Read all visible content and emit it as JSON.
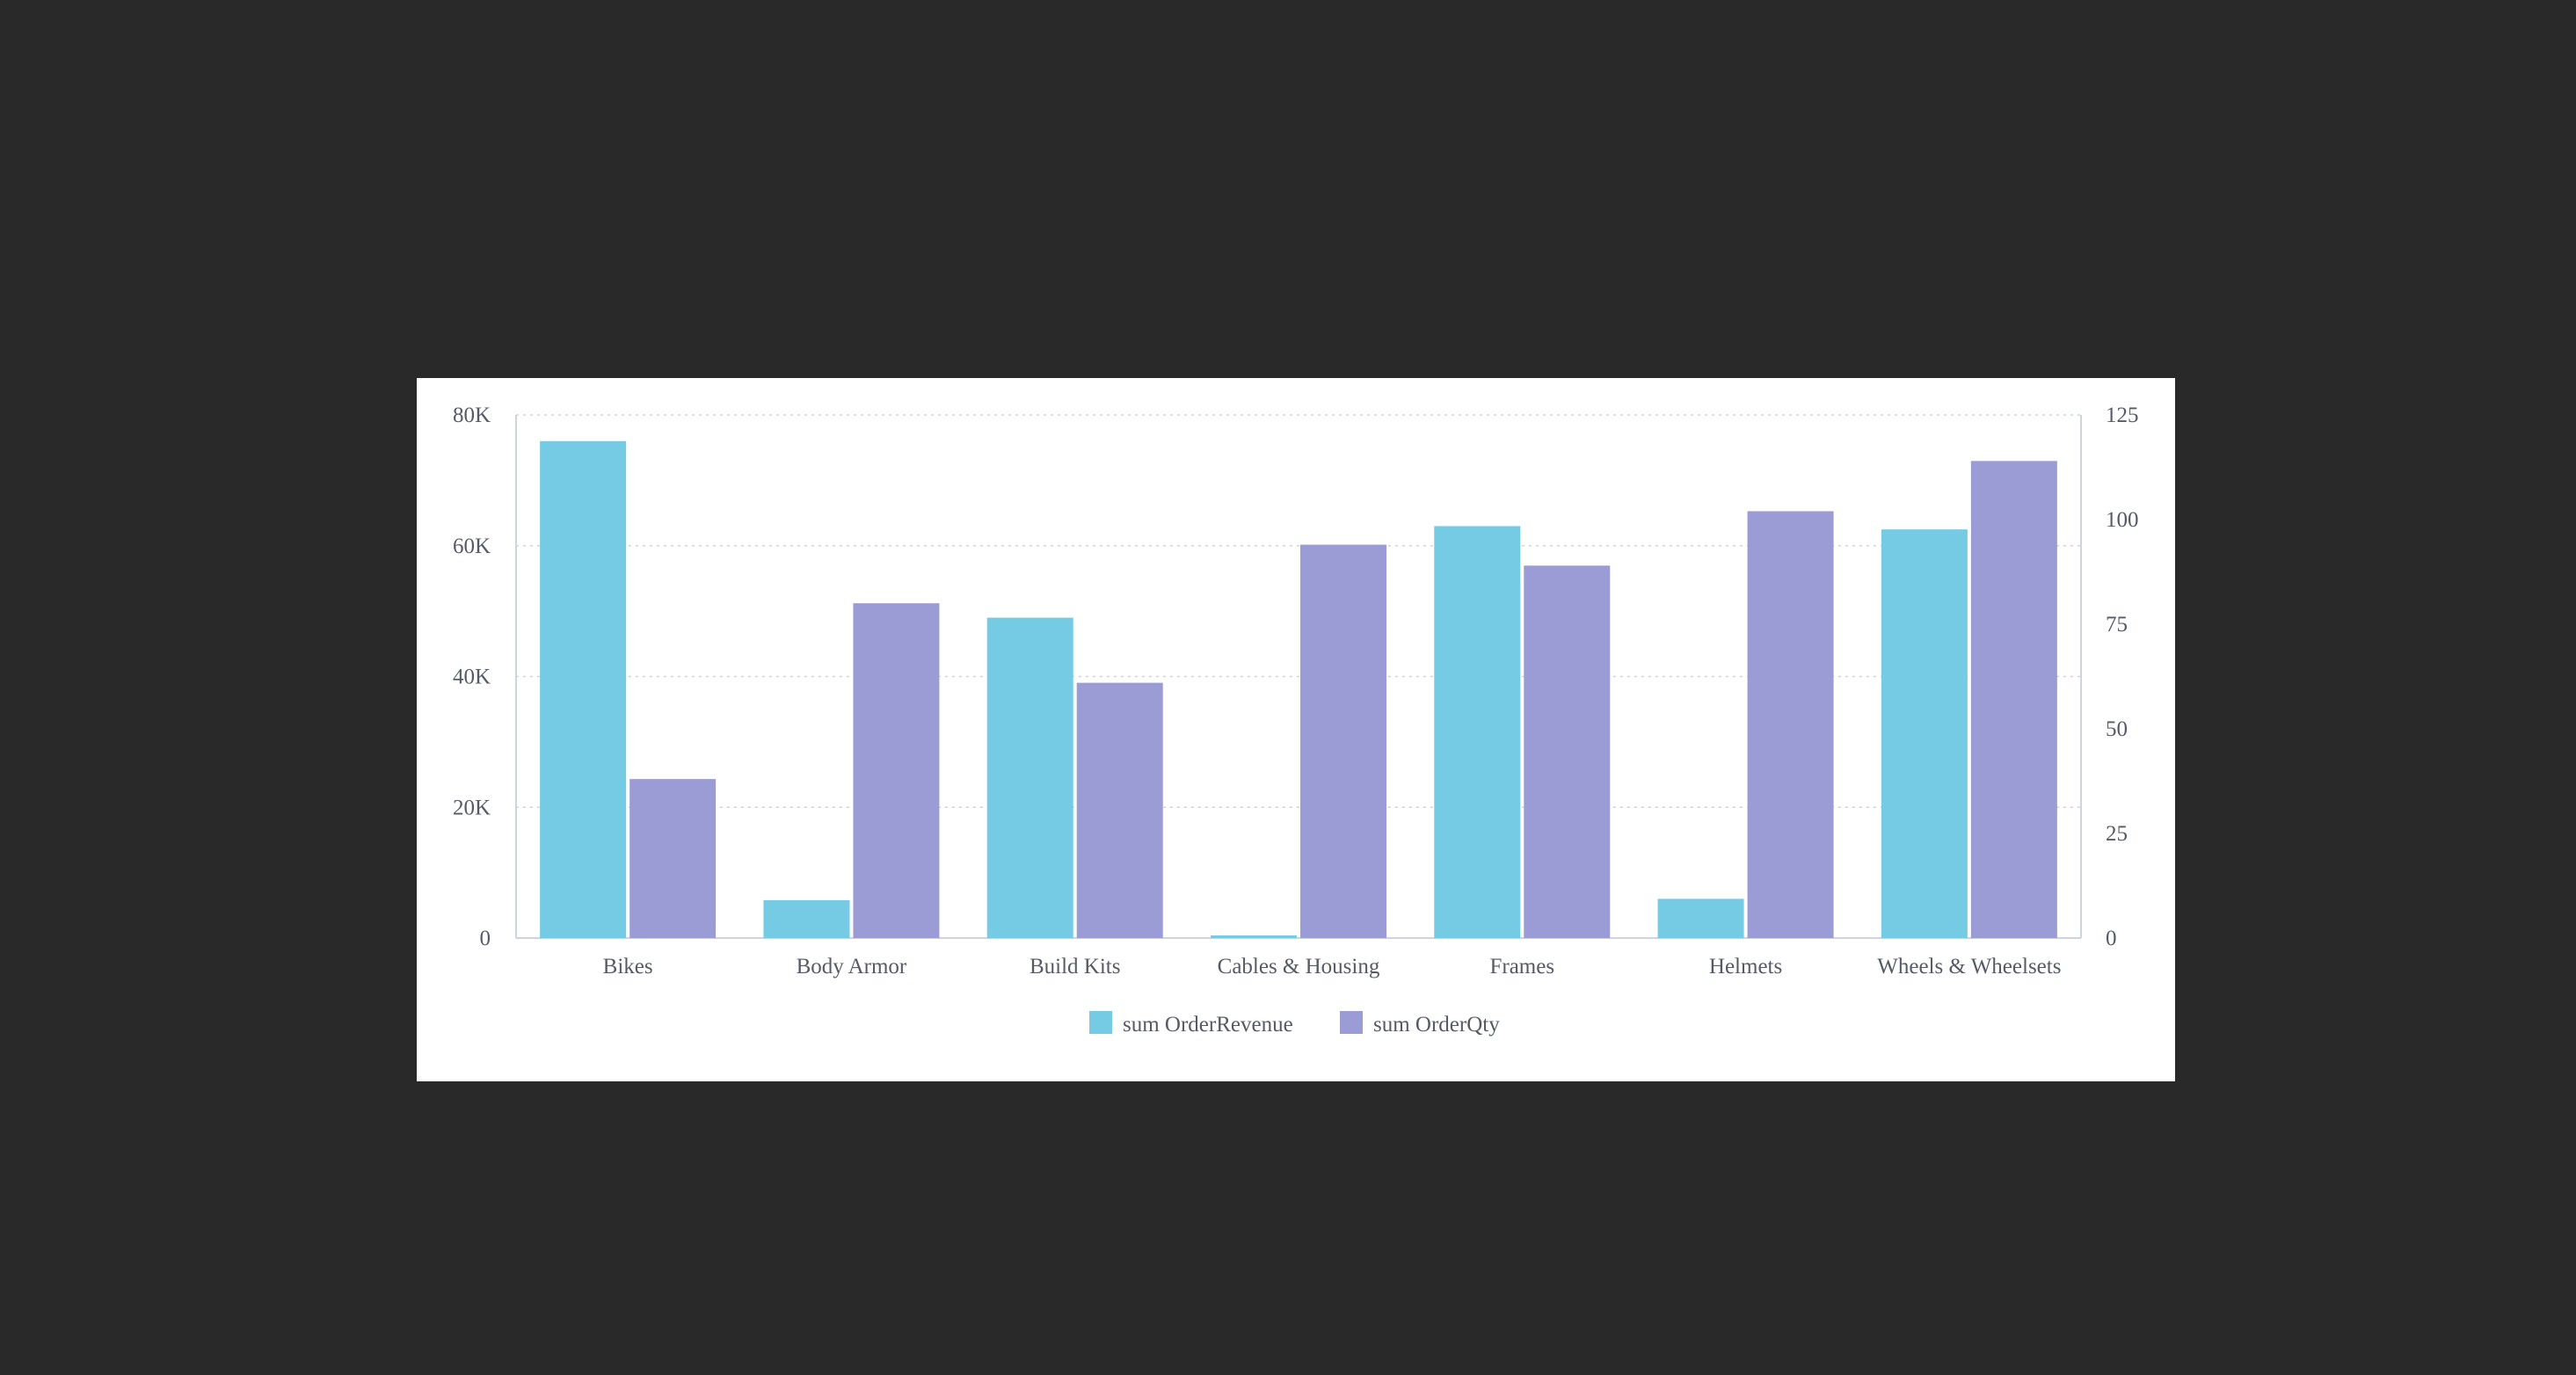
{
  "colors": {
    "background": "#292929",
    "panel": "#ffffff",
    "revenue": "#74cbe3",
    "qty": "#9b9bd6",
    "grid": "#d3d3d3",
    "axis": "#cfd3db",
    "text": "#555a66"
  },
  "chart_data": {
    "type": "bar",
    "title": "",
    "xlabel": "",
    "ylabel": "",
    "categories": [
      "Bikes",
      "Body Armor",
      "Build Kits",
      "Cables & Housing",
      "Frames",
      "Helmets",
      "Wheels & Wheelsets"
    ],
    "series": [
      {
        "name": "sum OrderRevenue",
        "axis": "left",
        "color": "#74cbe3",
        "values": [
          76000,
          5800,
          49000,
          400,
          63000,
          6000,
          62500
        ]
      },
      {
        "name": "sum OrderQty",
        "axis": "right",
        "color": "#9b9bd6",
        "values": [
          38,
          80,
          61,
          94,
          89,
          102,
          114
        ]
      }
    ],
    "ylim_left": [
      0,
      80000
    ],
    "ylim_right": [
      0,
      125
    ],
    "yticks_left": [
      "0",
      "20K",
      "40K",
      "60K",
      "80K"
    ],
    "yticks_right": [
      "0",
      "25",
      "50",
      "75",
      "100",
      "125"
    ],
    "grid": true,
    "legend_position": "bottom-center"
  }
}
